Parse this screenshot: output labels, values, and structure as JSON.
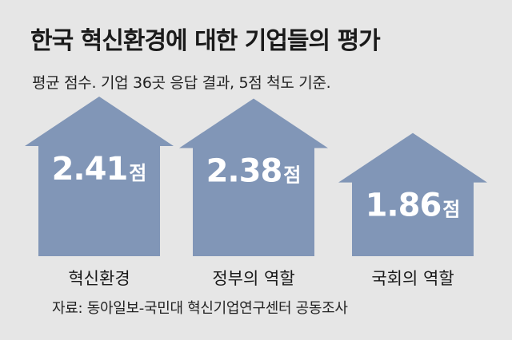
{
  "chart_data": {
    "type": "bar",
    "title": "한국 혁신환경에 대한 기업들의 평가",
    "subtitle": "평균 점수. 기업 36곳 응답 결과, 5점 척도 기준.",
    "categories": [
      "혁신환경",
      "정부의 역할",
      "국회의 역할"
    ],
    "values": [
      2.41,
      2.38,
      1.86
    ],
    "value_labels": [
      "2.41",
      "2.38",
      "1.86"
    ],
    "unit": "점",
    "source": "자료: 동아일보-국민대 혁신기업연구센터 공동조사",
    "colors": {
      "bar": "#8196b7",
      "background": "#e6e6e6",
      "value_text": "#ffffff"
    }
  }
}
